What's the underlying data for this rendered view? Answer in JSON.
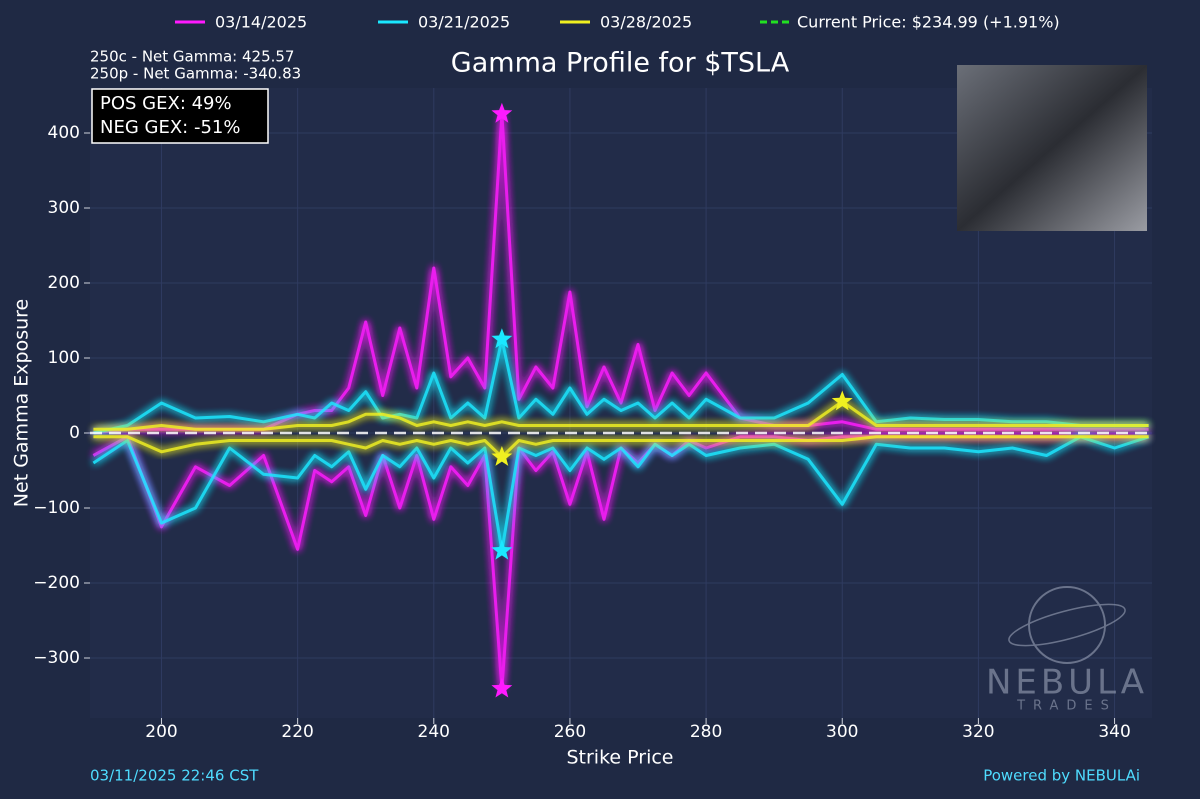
{
  "chart_data": {
    "type": "line",
    "title": "Gamma Profile for $TSLA",
    "x_label": "Strike Price",
    "y_label": "Net Gamma Exposure",
    "x": [
      190,
      195,
      200,
      205,
      210,
      215,
      220,
      222.5,
      225,
      227.5,
      230,
      232.5,
      235,
      237.5,
      240,
      242.5,
      245,
      247.5,
      250,
      252.5,
      255,
      257.5,
      260,
      262.5,
      265,
      267.5,
      270,
      272.5,
      275,
      277.5,
      280,
      285,
      290,
      295,
      300,
      305,
      310,
      315,
      320,
      325,
      330,
      335,
      340,
      345
    ],
    "series": [
      {
        "name": "03/14/2025",
        "color": "#ff1aff",
        "values": [
          0,
          5,
          5,
          5,
          5,
          5,
          25,
          30,
          30,
          60,
          148,
          50,
          140,
          60,
          220,
          75,
          100,
          60,
          425.57,
          45,
          88,
          60,
          188,
          35,
          88,
          40,
          118,
          30,
          80,
          50,
          80,
          20,
          10,
          10,
          15,
          5,
          5,
          5,
          5,
          5,
          5,
          5,
          5,
          5
        ],
        "negative_values": [
          -30,
          -5,
          -125,
          -45,
          -70,
          -30,
          -155,
          -50,
          -65,
          -45,
          -110,
          -30,
          -100,
          -30,
          -115,
          -45,
          -70,
          -30,
          -340.83,
          -20,
          -50,
          -25,
          -95,
          -25,
          -115,
          -20,
          -40,
          -15,
          -30,
          -10,
          -20,
          -5,
          -5,
          -10,
          -5,
          -5,
          -5,
          -5,
          -5,
          -5,
          -5,
          -5,
          -5,
          -5
        ]
      },
      {
        "name": "03/21/2025",
        "color": "#1ae8ff",
        "values": [
          0,
          10,
          40,
          20,
          22,
          15,
          25,
          20,
          40,
          30,
          55,
          20,
          25,
          20,
          80,
          20,
          40,
          20,
          125,
          20,
          45,
          25,
          60,
          25,
          45,
          30,
          40,
          20,
          40,
          20,
          45,
          20,
          20,
          40,
          78,
          15,
          20,
          18,
          18,
          15,
          15,
          10,
          10,
          10
        ],
        "negative_values": [
          -40,
          -10,
          -120,
          -100,
          -20,
          -55,
          -60,
          -30,
          -45,
          -25,
          -75,
          -30,
          -45,
          -20,
          -60,
          -20,
          -40,
          -20,
          -157,
          -20,
          -30,
          -20,
          -50,
          -20,
          -35,
          -20,
          -45,
          -15,
          -30,
          -15,
          -30,
          -20,
          -15,
          -35,
          -95,
          -15,
          -20,
          -20,
          -25,
          -20,
          -30,
          -5,
          -20,
          -5
        ]
      },
      {
        "name": "03/28/2025",
        "color": "#f0f020",
        "values": [
          5,
          5,
          10,
          5,
          5,
          5,
          10,
          10,
          10,
          15,
          25,
          25,
          20,
          10,
          15,
          10,
          15,
          10,
          15,
          10,
          10,
          10,
          10,
          10,
          10,
          10,
          10,
          10,
          10,
          10,
          10,
          10,
          10,
          10,
          42,
          10,
          10,
          10,
          10,
          10,
          10,
          10,
          10,
          10
        ],
        "negative_values": [
          -5,
          -5,
          -25,
          -15,
          -10,
          -10,
          -10,
          -10,
          -10,
          -15,
          -20,
          -10,
          -15,
          -10,
          -15,
          -10,
          -15,
          -10,
          -32,
          -10,
          -15,
          -10,
          -10,
          -10,
          -10,
          -10,
          -10,
          -10,
          -10,
          -10,
          -10,
          -10,
          -10,
          -10,
          -10,
          -5,
          -5,
          -5,
          -5,
          -5,
          -5,
          -5,
          -5,
          -5
        ]
      }
    ],
    "current_price": {
      "label": "Current Price: $234.99 (+1.91%)",
      "value": 234.99,
      "color": "#22e022"
    },
    "xlim": [
      189.5,
      345.5
    ],
    "ylim": [
      -380,
      460
    ],
    "xticks": [
      200,
      220,
      240,
      260,
      280,
      300,
      320,
      340
    ],
    "yticks": [
      {
        "value": -300,
        "label": "−300"
      },
      {
        "value": -200,
        "label": "−200"
      },
      {
        "value": -100,
        "label": "−100"
      },
      0,
      100,
      200,
      300,
      400
    ],
    "grid": true,
    "annotations": [
      "250c - Net Gamma: 425.57",
      "250p - Net Gamma: -340.83"
    ],
    "gex": [
      "POS GEX: 49%",
      "NEG GEX: -51%"
    ],
    "timestamp": "03/11/2025 22:46 CST",
    "credit": "Powered by NEBULAi",
    "watermark": {
      "title": "NEBULA",
      "subtitle": "TRADES"
    }
  }
}
